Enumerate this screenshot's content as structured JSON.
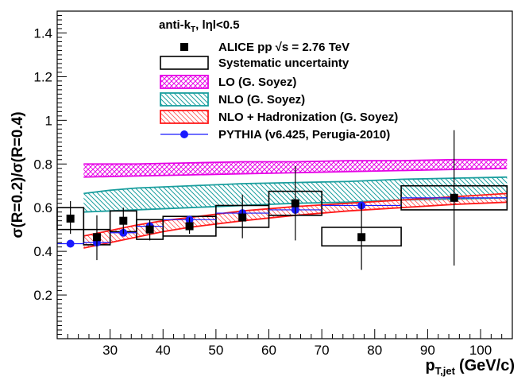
{
  "chart_data": {
    "type": "scatter",
    "xlabel": "p",
    "xlabel_sub": "T,jet",
    "xlabel_unit": "(GeV/c)",
    "ylabel": "σ(R=0.2)/σ(R=0.4)",
    "xlim": [
      20,
      106
    ],
    "ylim": [
      0,
      1.5
    ],
    "x_ticks": [
      30,
      40,
      50,
      60,
      70,
      80,
      90,
      100
    ],
    "y_ticks": [
      0.2,
      0.4,
      0.6,
      0.8,
      1.0,
      1.2,
      1.4
    ],
    "x_tick_labels": [
      "30",
      "40",
      "50",
      "60",
      "70",
      "80",
      "90",
      "100"
    ],
    "y_tick_labels": [
      "0.2",
      "0.4",
      "0.6",
      "0.8",
      "1",
      "1.2",
      "1.4"
    ],
    "header": {
      "prefix": "anti-k",
      "sub": "T",
      "suffix": ", lηl<0.5"
    },
    "legend": [
      {
        "key": "data",
        "label": "ALICE pp  √s = 2.76 TeV"
      },
      {
        "key": "syst",
        "label": "Systematic uncertainty"
      },
      {
        "key": "lo",
        "label": "LO (G. Soyez)"
      },
      {
        "key": "nlo",
        "label": "NLO (G. Soyez)"
      },
      {
        "key": "nlohad",
        "label": "NLO + Hadronization (G. Soyez)"
      },
      {
        "key": "pythia",
        "label": "PYTHIA (v6.425, Perugia-2010)"
      }
    ],
    "colors": {
      "data": "#000000",
      "pythia": "#1a1aff",
      "lo": "#e600e6",
      "nlo": "#1a9e9e",
      "nlohad": "#ff1a1a"
    },
    "data_points": [
      {
        "x": 22.5,
        "y": 0.55,
        "ylow": 0.48,
        "yhigh": 0.63,
        "sys_xlow": 20,
        "sys_xhigh": 25,
        "sys_ylow": 0.5,
        "sys_yhigh": 0.6
      },
      {
        "x": 27.5,
        "y": 0.465,
        "ylow": 0.36,
        "yhigh": 0.565,
        "sys_xlow": 25,
        "sys_xhigh": 30,
        "sys_ylow": 0.43,
        "sys_yhigh": 0.5
      },
      {
        "x": 32.5,
        "y": 0.54,
        "ylow": 0.48,
        "yhigh": 0.6,
        "sys_xlow": 30,
        "sys_xhigh": 35,
        "sys_ylow": 0.49,
        "sys_yhigh": 0.585
      },
      {
        "x": 37.5,
        "y": 0.5,
        "ylow": 0.45,
        "yhigh": 0.545,
        "sys_xlow": 35,
        "sys_xhigh": 40,
        "sys_ylow": 0.455,
        "sys_yhigh": 0.545
      },
      {
        "x": 45,
        "y": 0.515,
        "ylow": 0.48,
        "yhigh": 0.555,
        "sys_xlow": 40,
        "sys_xhigh": 50,
        "sys_ylow": 0.47,
        "sys_yhigh": 0.56
      },
      {
        "x": 55,
        "y": 0.555,
        "ylow": 0.46,
        "yhigh": 0.66,
        "sys_xlow": 50,
        "sys_xhigh": 60,
        "sys_ylow": 0.51,
        "sys_yhigh": 0.61
      },
      {
        "x": 65,
        "y": 0.62,
        "ylow": 0.45,
        "yhigh": 0.79,
        "sys_xlow": 60,
        "sys_xhigh": 70,
        "sys_ylow": 0.565,
        "sys_yhigh": 0.675
      },
      {
        "x": 77.5,
        "y": 0.465,
        "ylow": 0.315,
        "yhigh": 0.62,
        "sys_xlow": 70,
        "sys_xhigh": 85,
        "sys_ylow": 0.425,
        "sys_yhigh": 0.51
      },
      {
        "x": 95,
        "y": 0.645,
        "ylow": 0.335,
        "yhigh": 0.955,
        "sys_xlow": 85,
        "sys_xhigh": 105,
        "sys_ylow": 0.59,
        "sys_yhigh": 0.7
      }
    ],
    "pythia_points": [
      {
        "x": 22.5,
        "y": 0.435,
        "xlow": 20,
        "xhigh": 25
      },
      {
        "x": 27.5,
        "y": 0.44,
        "xlow": 25,
        "xhigh": 30
      },
      {
        "x": 32.5,
        "y": 0.485,
        "xlow": 30,
        "xhigh": 35
      },
      {
        "x": 37.5,
        "y": 0.515,
        "xlow": 35,
        "xhigh": 40
      },
      {
        "x": 45,
        "y": 0.545,
        "xlow": 40,
        "xhigh": 50
      },
      {
        "x": 55,
        "y": 0.575,
        "xlow": 50,
        "xhigh": 60
      },
      {
        "x": 65,
        "y": 0.59,
        "xlow": 60,
        "xhigh": 70
      },
      {
        "x": 77.5,
        "y": 0.61,
        "xlow": 70,
        "xhigh": 85
      },
      {
        "x": 95,
        "y": 0.645,
        "xlow": 85,
        "xhigh": 105
      }
    ],
    "lo_band": {
      "x": [
        25,
        35,
        45,
        55,
        65,
        75,
        85,
        95,
        105
      ],
      "lower": [
        0.74,
        0.745,
        0.75,
        0.755,
        0.76,
        0.765,
        0.77,
        0.775,
        0.78
      ],
      "upper": [
        0.8,
        0.8,
        0.805,
        0.81,
        0.81,
        0.815,
        0.815,
        0.82,
        0.82
      ]
    },
    "nlo_band": {
      "x": [
        25,
        30,
        35,
        45,
        55,
        65,
        75,
        85,
        95,
        105
      ],
      "lower": [
        0.58,
        0.585,
        0.59,
        0.6,
        0.61,
        0.62,
        0.625,
        0.635,
        0.64,
        0.645
      ],
      "upper": [
        0.665,
        0.68,
        0.69,
        0.7,
        0.71,
        0.715,
        0.72,
        0.73,
        0.735,
        0.74
      ]
    },
    "nlohad_band": {
      "x": [
        25,
        30,
        35,
        40,
        45,
        55,
        65,
        75,
        85,
        95,
        105
      ],
      "lower": [
        0.415,
        0.44,
        0.465,
        0.49,
        0.51,
        0.54,
        0.565,
        0.585,
        0.6,
        0.615,
        0.625
      ],
      "upper": [
        0.47,
        0.495,
        0.52,
        0.54,
        0.555,
        0.585,
        0.605,
        0.62,
        0.635,
        0.65,
        0.665
      ]
    }
  }
}
